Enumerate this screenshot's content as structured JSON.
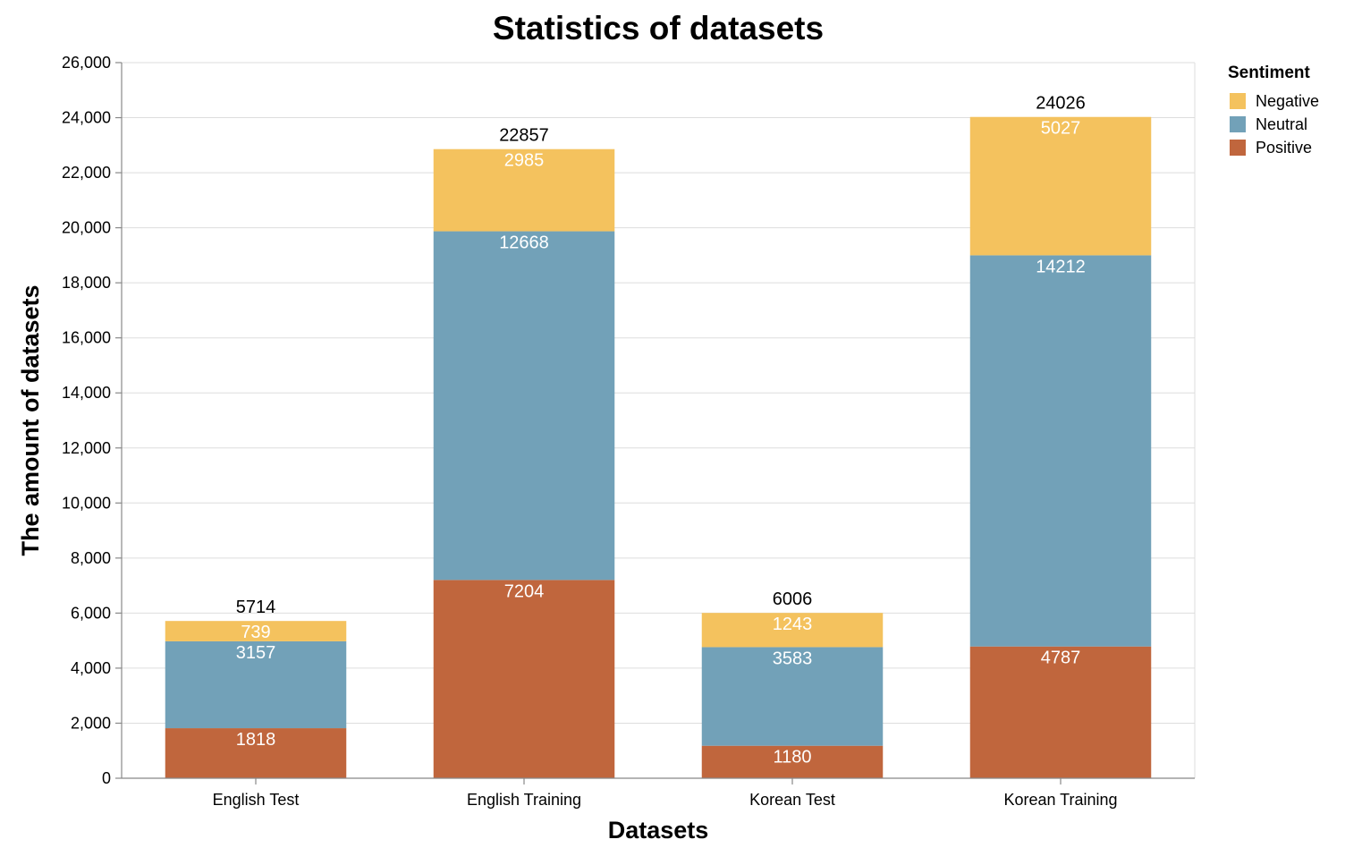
{
  "chart_data": {
    "type": "bar",
    "stacked": true,
    "title": "Statistics of datasets",
    "xlabel": "Datasets",
    "ylabel": "The amount of datasets",
    "ylim": [
      0,
      26000
    ],
    "yticks": [
      0,
      2000,
      4000,
      6000,
      8000,
      10000,
      12000,
      14000,
      16000,
      18000,
      20000,
      22000,
      24000,
      26000
    ],
    "ytick_labels": [
      "0",
      "2,000",
      "4,000",
      "6,000",
      "8,000",
      "10,000",
      "12,000",
      "14,000",
      "16,000",
      "18,000",
      "20,000",
      "22,000",
      "24,000",
      "26,000"
    ],
    "grid": true,
    "categories": [
      "English Test",
      "English Training",
      "Korean Test",
      "Korean Training"
    ],
    "series": [
      {
        "name": "Positive",
        "color": "#c0663d",
        "values": [
          1818,
          7204,
          1180,
          4787
        ]
      },
      {
        "name": "Neutral",
        "color": "#72a1b8",
        "values": [
          3157,
          12668,
          3583,
          14212
        ]
      },
      {
        "name": "Negative",
        "color": "#f4c25e",
        "values": [
          739,
          2985,
          1243,
          5027
        ]
      }
    ],
    "totals": [
      5714,
      22857,
      6006,
      24026
    ],
    "legend": {
      "title": "Sentiment",
      "position": "top-right",
      "order": [
        "Negative",
        "Neutral",
        "Positive"
      ]
    }
  }
}
